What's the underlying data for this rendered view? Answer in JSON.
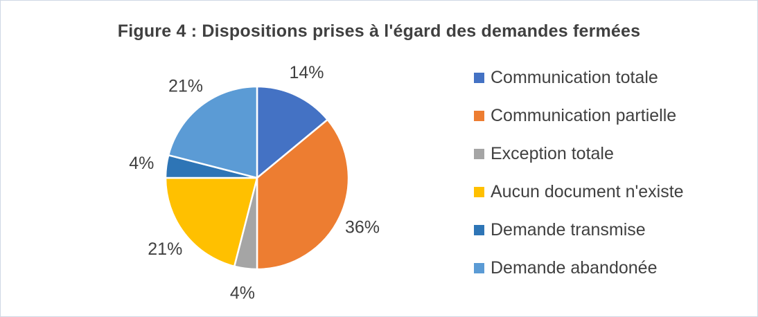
{
  "chart_data": {
    "type": "pie",
    "title": "Figure 4 : Dispositions prises à l'égard des demandes fermées",
    "categories": [
      "Communication totale",
      "Communication partielle",
      "Exception totale",
      "Aucun document n'existe",
      "Demande transmise",
      "Demande abandonée"
    ],
    "values": [
      14,
      36,
      4,
      21,
      4,
      21
    ],
    "labels": [
      "14%",
      "36%",
      "4%",
      "21%",
      "4%",
      "21%"
    ],
    "colors": [
      "#4472C4",
      "#ED7D31",
      "#A5A5A5",
      "#FFC000",
      "#2E75B6",
      "#5B9BD5"
    ],
    "start_angle_deg": 0,
    "direction": "clockwise",
    "label_position": "outside",
    "legend_position": "right",
    "text_color": "#404040",
    "border_color": "#CFD8E4"
  }
}
